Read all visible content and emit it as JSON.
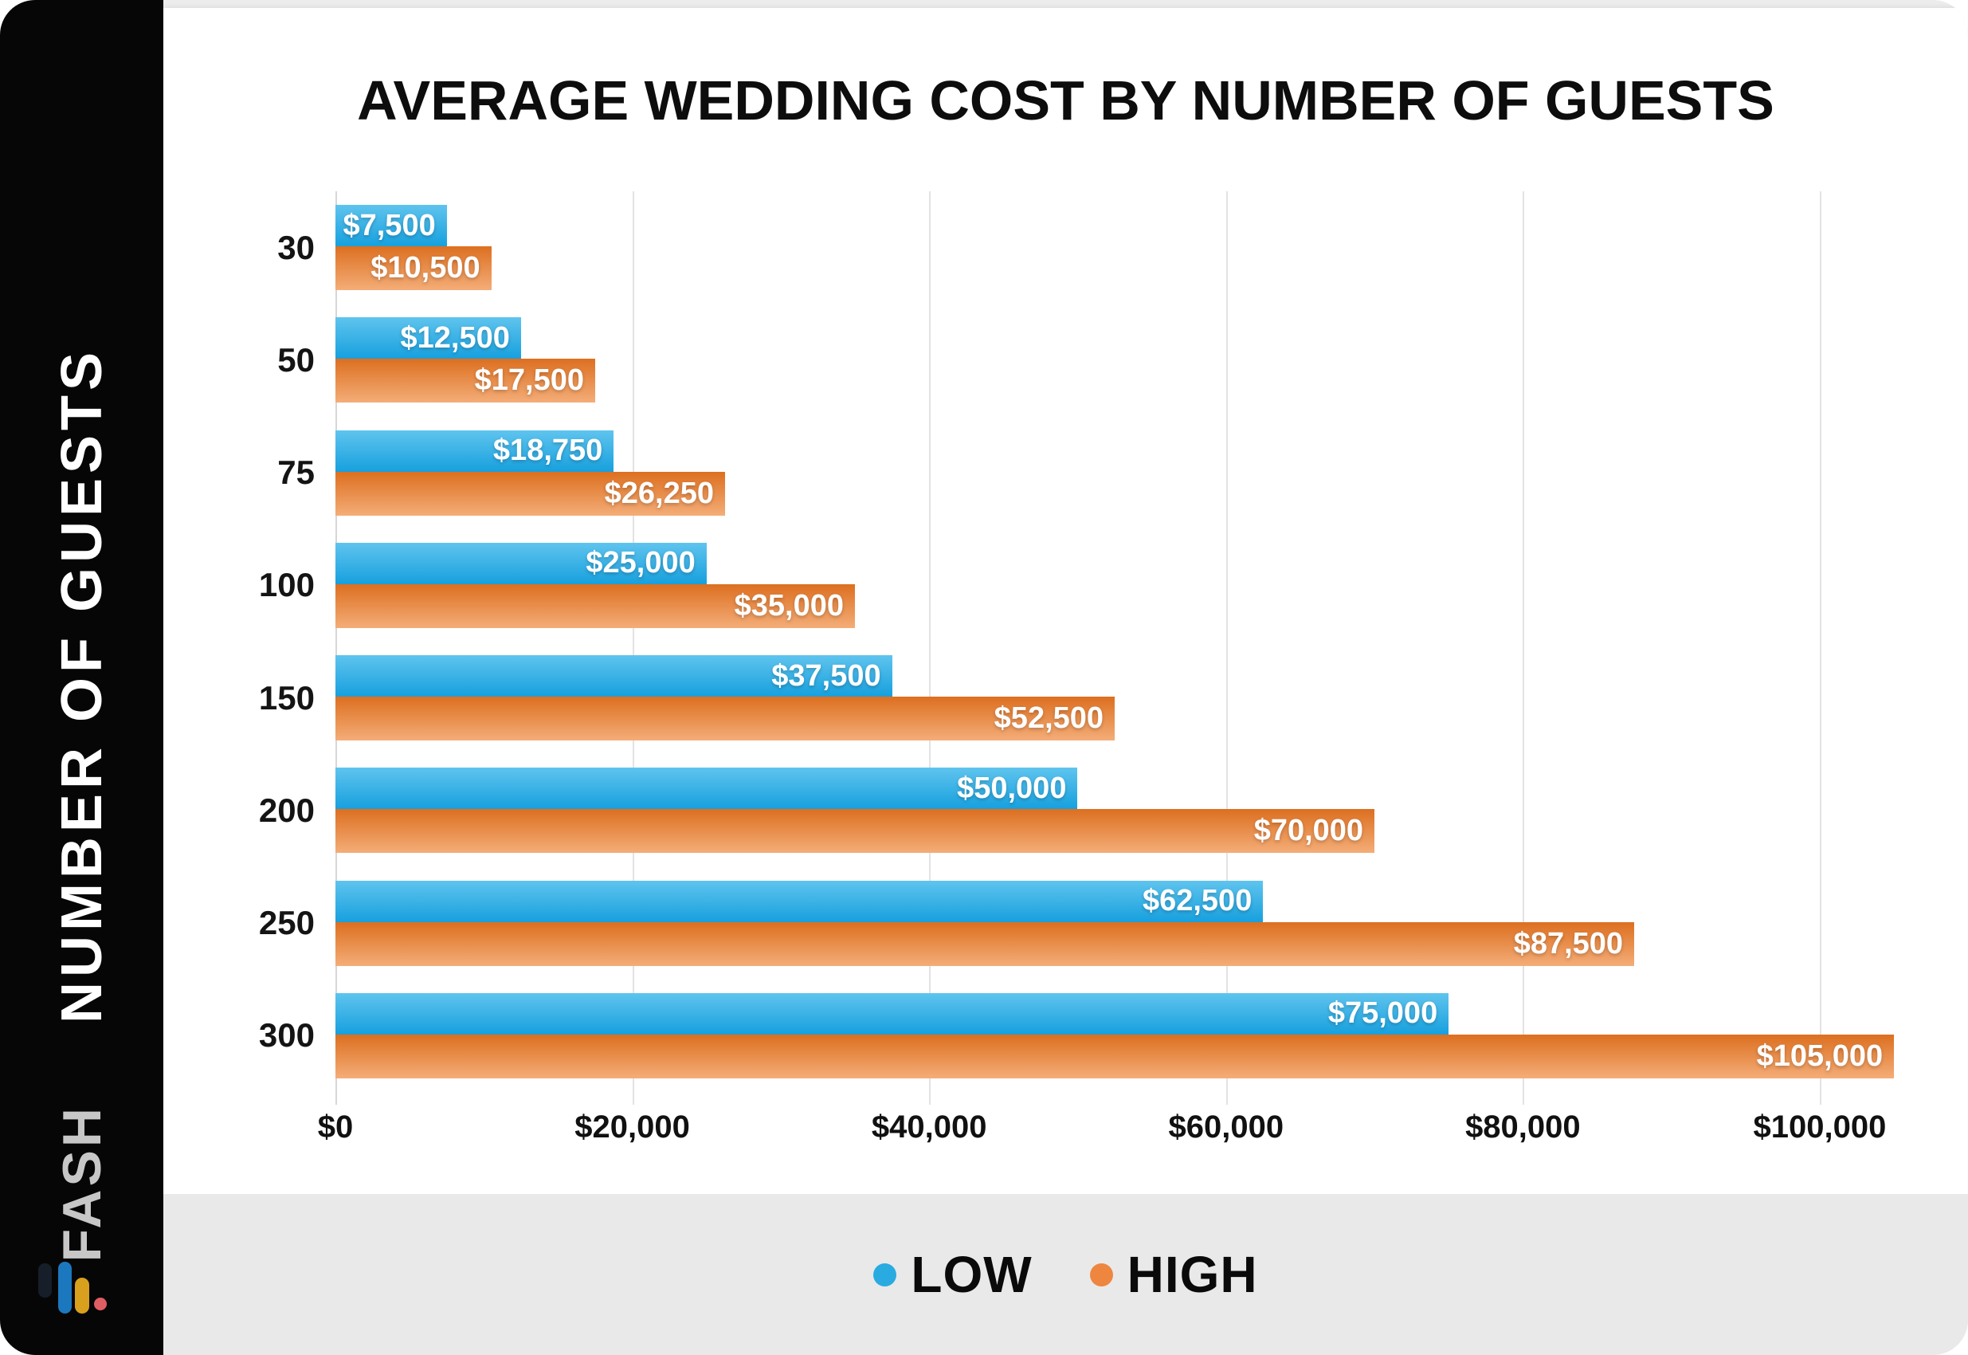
{
  "page": {
    "title": "AVERAGE WEDDING COST BY NUMBER OF GUESTS"
  },
  "sidebar": {
    "vertical_label": "NUMBER OF GUESTS",
    "brand": "FASH",
    "background": "#060606",
    "brand_color": "#C7C7C7",
    "logo_colors": {
      "dark_bar": "#161E29",
      "blue_bar": "#1B78BE",
      "gold_bar": "#D9A01D",
      "red_dot": "#DF5E63"
    }
  },
  "legend": {
    "position": "bottom",
    "band_color": "#E9E9E9",
    "items": [
      {
        "label": "LOW",
        "color": "#29ABE2"
      },
      {
        "label": "HIGH",
        "color": "#EE8640"
      }
    ]
  },
  "chart_data": {
    "type": "bar",
    "orientation": "horizontal",
    "title": "AVERAGE WEDDING COST BY NUMBER OF GUESTS",
    "ylabel": "NUMBER OF GUESTS",
    "xlabel": "",
    "grid": true,
    "legend_position": "bottom",
    "axis_max": 108000,
    "categories": [
      "30",
      "50",
      "75",
      "100",
      "150",
      "200",
      "250",
      "300"
    ],
    "series": [
      {
        "name": "LOW",
        "color_top": "#5FC4EE",
        "color_bottom": "#17A0DE",
        "values": [
          7500,
          12500,
          18750,
          25000,
          37500,
          50000,
          62500,
          75000
        ],
        "labels": [
          "$7,500",
          "$12,500",
          "$18,750",
          "$25,000",
          "$37,500",
          "$50,000",
          "$62,500",
          "$75,000"
        ]
      },
      {
        "name": "HIGH",
        "color_top": "#DC6F20",
        "color_bottom": "#F4AD78",
        "values": [
          10500,
          17500,
          26250,
          35000,
          52500,
          70000,
          87500,
          105000
        ],
        "labels": [
          "$10,500",
          "$17,500",
          "$26,250",
          "$35,000",
          "$52,500",
          "$70,000",
          "$87,500",
          "$105,000"
        ]
      }
    ],
    "x_ticks": [
      {
        "value": 0,
        "label": "$0"
      },
      {
        "value": 20000,
        "label": "$20,000"
      },
      {
        "value": 40000,
        "label": "$40,000"
      },
      {
        "value": 60000,
        "label": "$60,000"
      },
      {
        "value": 80000,
        "label": "$80,000"
      },
      {
        "value": 100000,
        "label": "$100,000"
      }
    ]
  }
}
